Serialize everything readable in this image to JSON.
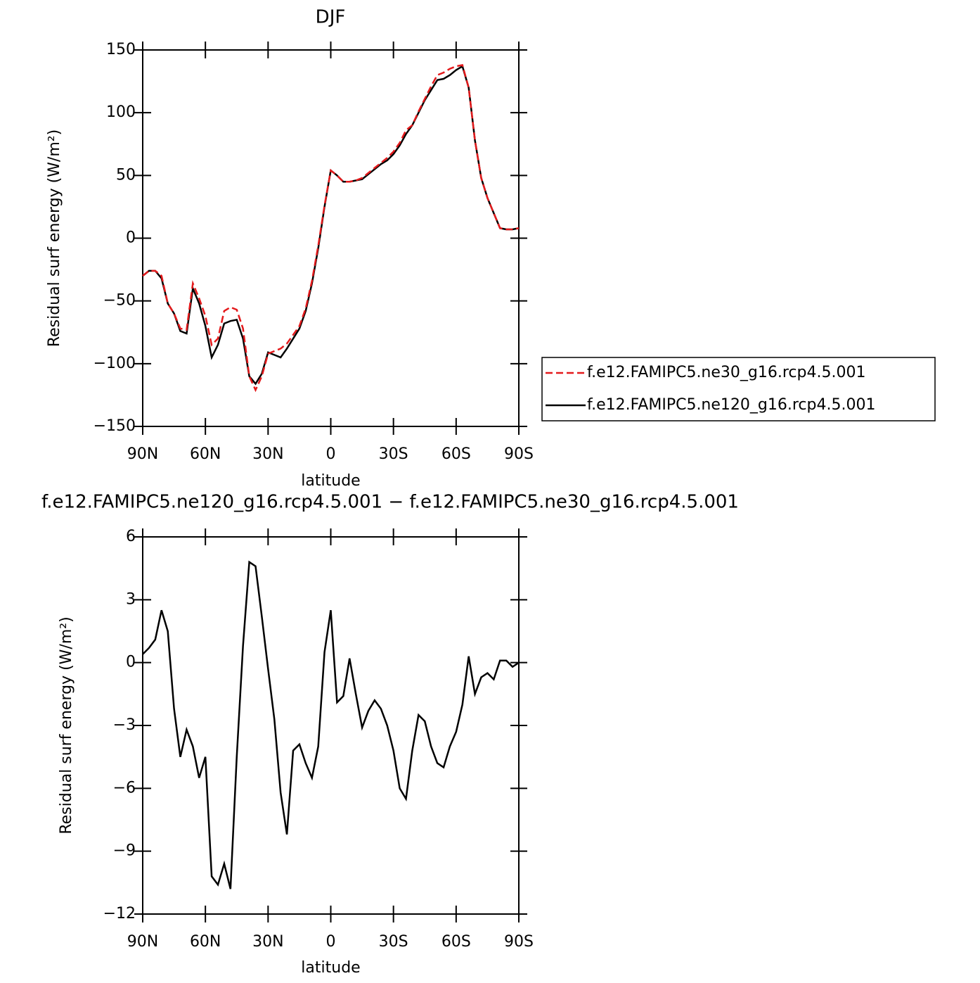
{
  "chart_data": [
    {
      "type": "line",
      "title": "DJF",
      "xlabel": "latitude",
      "ylabel": "Residual surf energy (W/m²)",
      "x": [
        90,
        87,
        84,
        81,
        78,
        75,
        72,
        69,
        66,
        63,
        60,
        57,
        54,
        51,
        48,
        45,
        42,
        39,
        36,
        33,
        30,
        27,
        24,
        21,
        18,
        15,
        12,
        9,
        6,
        3,
        0,
        -3,
        -6,
        -9,
        -12,
        -15,
        -18,
        -21,
        -24,
        -27,
        -30,
        -33,
        -36,
        -39,
        -42,
        -45,
        -48,
        -51,
        -54,
        -57,
        -60,
        -63,
        -66,
        -69,
        -72,
        -75,
        -78,
        -81,
        -84,
        -87,
        -90
      ],
      "xlim": [
        90,
        -90
      ],
      "xticks": [
        {
          "value": 90,
          "label": "90N"
        },
        {
          "value": 60,
          "label": "60N"
        },
        {
          "value": 30,
          "label": "30N"
        },
        0,
        {
          "value": -30,
          "label": "30S"
        },
        {
          "value": -60,
          "label": "60S"
        },
        {
          "value": -90,
          "label": "90S"
        }
      ],
      "ylim": [
        -150,
        150
      ],
      "yticks": [
        {
          "value": -150,
          "label": "−150"
        },
        {
          "value": -100,
          "label": "−100"
        },
        {
          "value": -50,
          "label": "−50"
        },
        0,
        50,
        100,
        150
      ],
      "legend": "outside-right",
      "series": [
        {
          "name": "f.e12.FAMIPC5.ne30_g16.rcp4.5.001",
          "color": "#e41a1c",
          "dash": true,
          "values": [
            -30,
            -26,
            -26,
            -30,
            -52,
            -60,
            -72,
            -73,
            -36,
            -48,
            -62,
            -85,
            -80,
            -58,
            -55,
            -57,
            -72,
            -110,
            -121,
            -110,
            -92,
            -90,
            -88,
            -84,
            -77,
            -70,
            -56,
            -34,
            -6,
            26,
            54,
            50,
            45,
            45,
            46,
            48,
            52,
            56,
            60,
            64,
            69,
            76,
            86,
            90,
            101,
            111,
            121,
            130,
            132,
            135,
            137,
            138,
            120,
            78,
            48,
            32,
            20,
            8,
            7,
            7,
            8
          ]
        },
        {
          "name": "f.e12.FAMIPC5.ne120_g16.rcp4.5.001",
          "color": "#000000",
          "dash": false,
          "values": [
            -30,
            -26,
            -26,
            -32,
            -52,
            -60,
            -74,
            -76,
            -40,
            -52,
            -70,
            -95,
            -85,
            -68,
            -66,
            -65,
            -80,
            -110,
            -116,
            -108,
            -91,
            -93,
            -95,
            -88,
            -80,
            -72,
            -58,
            -36,
            -8,
            25,
            54,
            50,
            45,
            45,
            46,
            47,
            51,
            55,
            59,
            62,
            67,
            74,
            83,
            90,
            100,
            110,
            118,
            126,
            127,
            130,
            134,
            137,
            120,
            78,
            48,
            32,
            20,
            8,
            7,
            7,
            8
          ]
        }
      ]
    },
    {
      "type": "line",
      "title": "f.e12.FAMIPC5.ne120_g16.rcp4.5.001 − f.e12.FAMIPC5.ne30_g16.rcp4.5.001",
      "xlabel": "latitude",
      "ylabel": "Residual surf energy (W/m²)",
      "x": [
        90,
        87,
        84,
        81,
        78,
        75,
        72,
        69,
        66,
        63,
        60,
        57,
        54,
        51,
        48,
        45,
        42,
        39,
        36,
        33,
        30,
        27,
        24,
        21,
        18,
        15,
        12,
        9,
        6,
        3,
        0,
        -3,
        -6,
        -9,
        -12,
        -15,
        -18,
        -21,
        -24,
        -27,
        -30,
        -33,
        -36,
        -39,
        -42,
        -45,
        -48,
        -51,
        -54,
        -57,
        -60,
        -63,
        -66,
        -69,
        -72,
        -75,
        -78,
        -81,
        -84,
        -87,
        -90
      ],
      "xlim": [
        90,
        -90
      ],
      "xticks": [
        {
          "value": 90,
          "label": "90N"
        },
        {
          "value": 60,
          "label": "60N"
        },
        {
          "value": 30,
          "label": "30N"
        },
        0,
        {
          "value": -30,
          "label": "30S"
        },
        {
          "value": -60,
          "label": "60S"
        },
        {
          "value": -90,
          "label": "90S"
        }
      ],
      "ylim": [
        -12,
        6
      ],
      "yticks": [
        {
          "value": -12,
          "label": "−12"
        },
        {
          "value": -9,
          "label": "−9"
        },
        {
          "value": -6,
          "label": "−6"
        },
        {
          "value": -3,
          "label": "−3"
        },
        0,
        3,
        6
      ],
      "series": [
        {
          "color": "#000000",
          "dash": false,
          "values": [
            0.4,
            0.7,
            1.1,
            2.5,
            1.5,
            -2.2,
            -4.5,
            -3.2,
            -4.0,
            -5.5,
            -4.5,
            -10.2,
            -10.6,
            -9.6,
            -10.8,
            -4.5,
            0.8,
            4.8,
            4.6,
            2.2,
            -0.3,
            -2.7,
            -6.2,
            -8.2,
            -4.2,
            -3.9,
            -4.8,
            -5.5,
            -4.0,
            0.5,
            2.5,
            -1.9,
            -1.6,
            0.2,
            -1.5,
            -3.1,
            -2.3,
            -1.8,
            -2.2,
            -3.0,
            -4.2,
            -6.0,
            -6.5,
            -4.2,
            -2.5,
            -2.8,
            -4.0,
            -4.8,
            -5.0,
            -4.0,
            -3.3,
            -2.0,
            0.3,
            -1.5,
            -0.7,
            -0.5,
            -0.8,
            0.1,
            0.1,
            -0.2,
            0.0
          ]
        }
      ]
    }
  ]
}
